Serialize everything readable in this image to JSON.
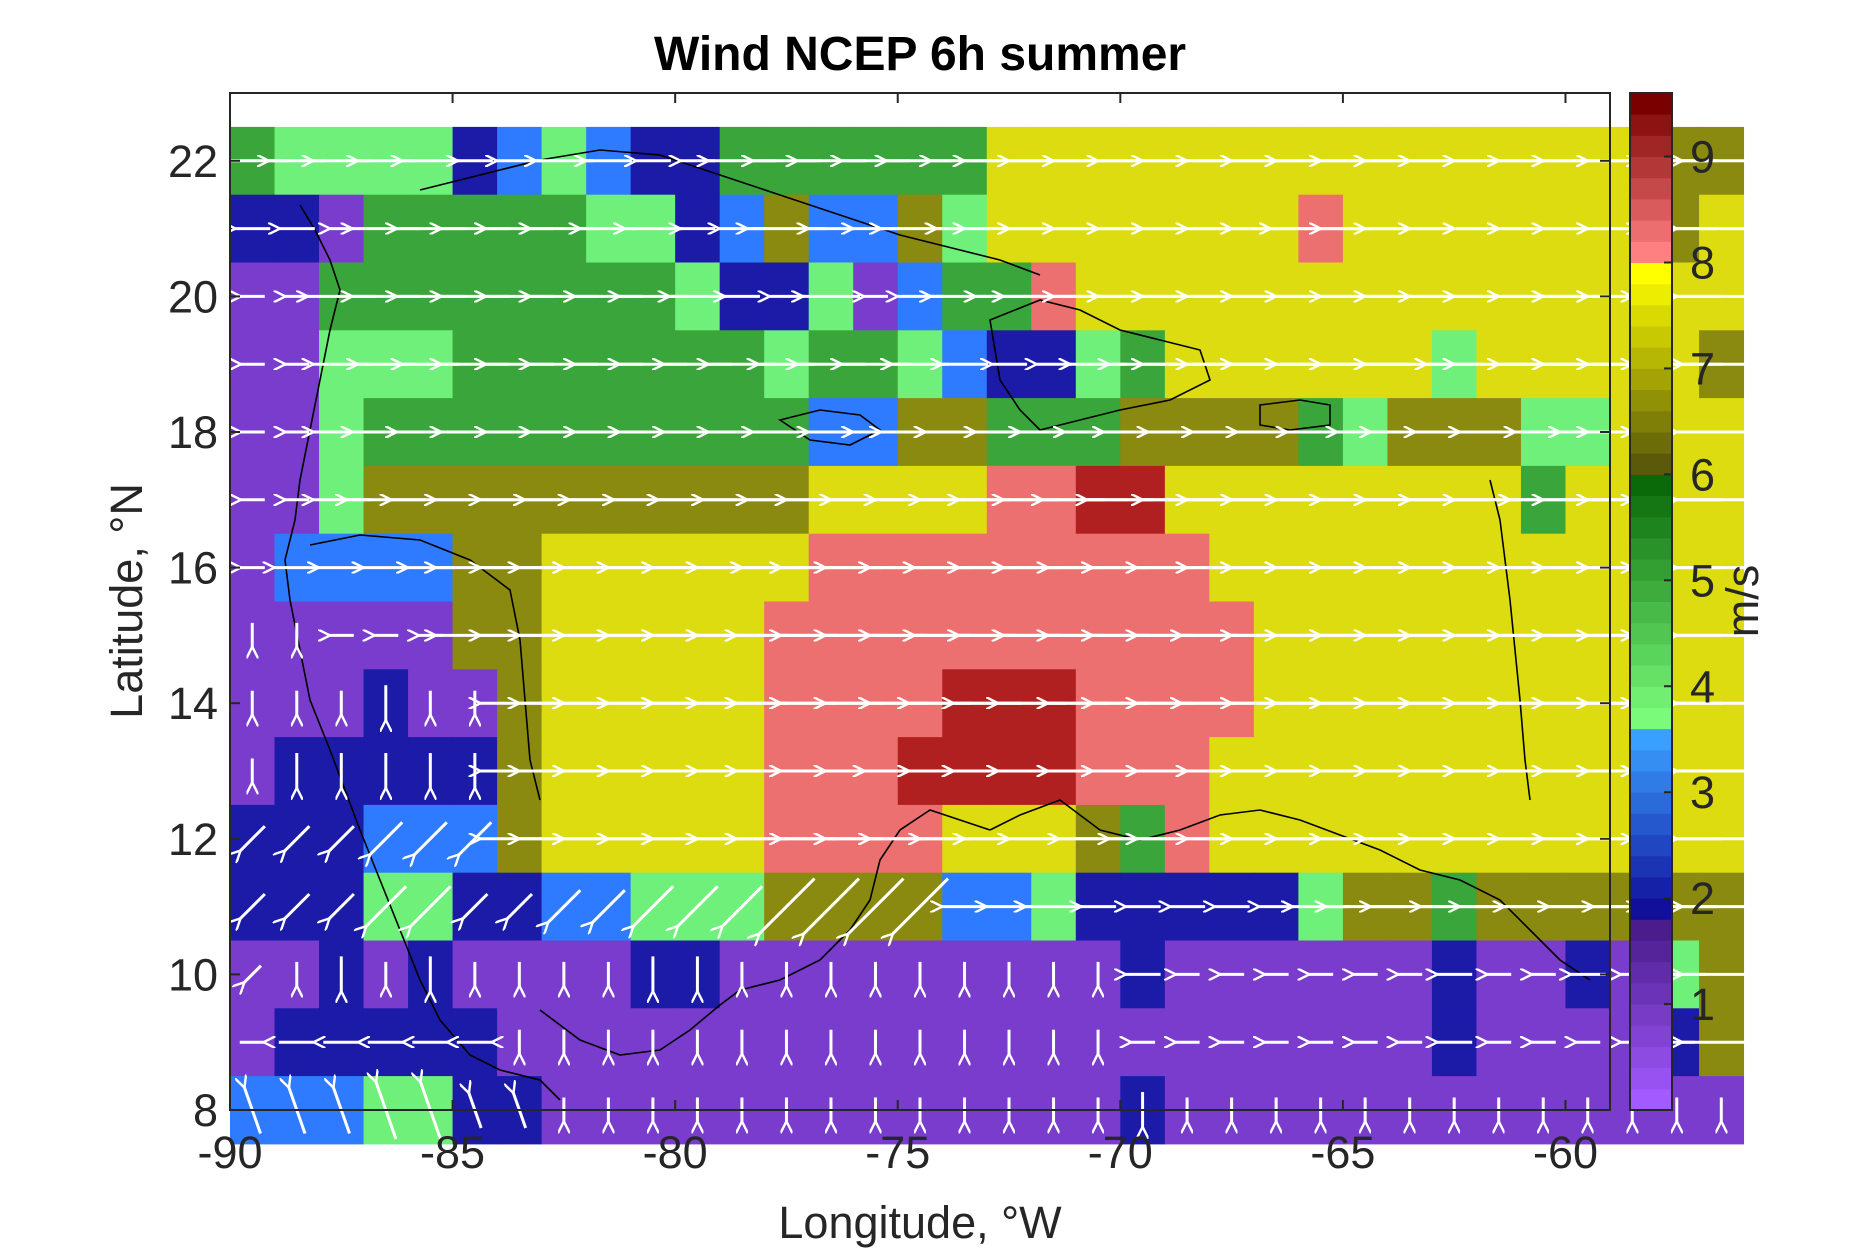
{
  "chart_data": {
    "type": "heatmap",
    "title": "Wind NCEP 6h summer",
    "xlabel": "Longitude, °W",
    "ylabel": "Latitude, °N",
    "colorbar_label": "m/s",
    "xlim": [
      -90,
      -59
    ],
    "ylim": [
      8,
      23
    ],
    "xticks": [
      -90,
      -85,
      -80,
      -75,
      -70,
      -65,
      -60
    ],
    "yticks": [
      8,
      10,
      12,
      14,
      16,
      18,
      20,
      22
    ],
    "colorbar_range": [
      0,
      9.6
    ],
    "colorbar_ticks": [
      1,
      2,
      3,
      4,
      5,
      6,
      7,
      8,
      9
    ],
    "grid": "off",
    "cell_degrees": 1,
    "lon_start": -90,
    "lat_rows": [
      22,
      21,
      20,
      19,
      18,
      17,
      16,
      15,
      14,
      13,
      12,
      11,
      10,
      9,
      8
    ],
    "speed_rows": [
      "5444423432255555577777777777777766",
      "2215555544236336477777778777777767",
      "1155555555422413558777777777777777",
      "1144455555554554322457777774777776",
      "1145555555555336655566665466644777",
      "1146666666666777788997777777757777",
      "1333366777777888888888777777777777",
      "1111166777778888888888877777777777",
      "1112116777778888999888877777777777",
      "1222226777778889999888777777777777",
      "2223336777778888777658777777777777",
      "2224422334446666334222224665666666",
      "1121211112211111111121111112112146",
      "1222221111111111111111111112111126",
      "3334422111111111111121111111111111"
    ],
    "wind_rows": [
      "WWWWWWWWWWWWWWWWWWWWWWWWWWWWWWWWWW",
      "WWWWWWWWWWWWWWWWWWWWWWWWWWWWWWWWWW",
      "WWWWWWWWWWWWWWWWWWWWWWWWWWWWWWWWWW",
      "WWWWWWWWWWWWWWWWWWWWWWWWWWWWWWWWWW",
      "WWWWWWWWWWWWWWWWWWWWWWWWWWWWWWWWWW",
      "WWWWWWWWWWWWWWWWWWWWWWWWWWWWWWWWWW",
      "WWWWWWWWWWWWWWWWWWWWWWWWWWWWWWWWWW",
      "SSWWWWWWWWWWWWWWWWWWWWWWWWWWWWWWWW",
      "SSSSSSWWWWWWWWWWWWWWWWWWWWWWWWWWWW",
      "SSSSSSWWWWWWWWWWWWWWWWWWWWWWWWWWWW",
      "VVVVVVWWWWWWWWWWWWWWWWWWWWWWWWWWWW",
      "VVVVVVVVVVVVVVVVWWWWWWWWWWWWWWWWWW",
      "VSSSSSSSSSSSSSSSSSSSWWWWWWWWWWWWWW",
      "EEEEEESSSSSSSSSSSSSSWWWWWWWWWWWWWW",
      "NNNNNNNSSSSSSSSSSSSSSSSSSSSSSSSSSS"
    ],
    "colormap": [
      {
        "level": 0,
        "color": "#a35aff"
      },
      {
        "level": 1,
        "color": "#7a3ccc"
      },
      {
        "level": 2,
        "color": "#1b1ba8"
      },
      {
        "level": 3,
        "color": "#2f7bff"
      },
      {
        "level": 4,
        "color": "#6ef07a"
      },
      {
        "level": 5,
        "color": "#3aa53a"
      },
      {
        "level": 6,
        "color": "#8a8a10"
      },
      {
        "level": 7,
        "color": "#dcdc10"
      },
      {
        "level": 8,
        "color": "#ec7070"
      },
      {
        "level": 9,
        "color": "#b02020"
      }
    ],
    "colorbar_colors": {
      "purple_low": "#a35aff",
      "purple_high": "#4a1c8c",
      "blue_low": "#10109a",
      "blue_high": "#3aa0ff",
      "green_low": "#7afc7a",
      "green_high": "#0a6a0a",
      "olive_low": "#5a5a0a",
      "yellow_high": "#ffff00",
      "red_low": "#ff8080",
      "red_high": "#7a0000"
    }
  }
}
